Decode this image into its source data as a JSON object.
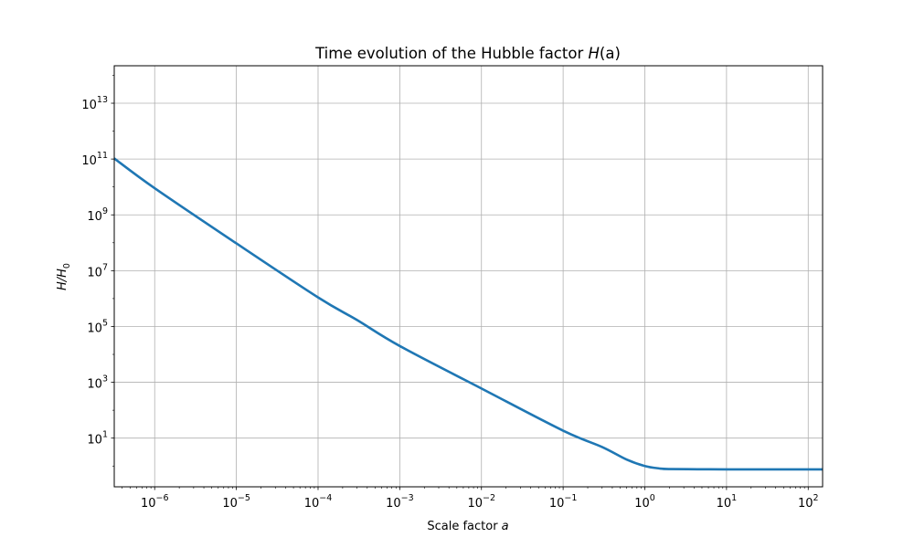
{
  "chart_data": {
    "type": "line",
    "title_text": "Time evolution of the Hubble factor ",
    "title_math": "H",
    "title_math_arg": "(a)",
    "xlabel_text": "Scale factor ",
    "xlabel_math": "a",
    "ylabel_main": "H/H",
    "ylabel_sub": "0",
    "xscale": "log",
    "yscale": "log",
    "grid": true,
    "xlim": [
      3.2e-07,
      150
    ],
    "ylim": [
      0.18,
      220000000000000.0
    ],
    "x_ticks": [
      {
        "base": "10",
        "exp": "−6"
      },
      {
        "base": "10",
        "exp": "−5"
      },
      {
        "base": "10",
        "exp": "−4"
      },
      {
        "base": "10",
        "exp": "−3"
      },
      {
        "base": "10",
        "exp": "−2"
      },
      {
        "base": "10",
        "exp": "−1"
      },
      {
        "base": "10",
        "exp": "0"
      },
      {
        "base": "10",
        "exp": "1"
      },
      {
        "base": "10",
        "exp": "2"
      }
    ],
    "y_ticks": [
      {
        "base": "10",
        "exp": "1"
      },
      {
        "base": "10",
        "exp": "3"
      },
      {
        "base": "10",
        "exp": "5"
      },
      {
        "base": "10",
        "exp": "7"
      },
      {
        "base": "10",
        "exp": "9"
      },
      {
        "base": "10",
        "exp": "11"
      },
      {
        "base": "10",
        "exp": "13"
      }
    ],
    "series": [
      {
        "color": "#1f77b4",
        "x": [
          3.2e-07,
          1e-06,
          1e-05,
          0.0001,
          0.0003,
          0.001,
          0.01,
          0.1,
          0.3,
          0.6,
          1,
          1.5,
          2,
          5,
          10,
          100,
          150
        ],
        "y": [
          105000000000.0,
          9000000000.0,
          95000000.0,
          1100000.0,
          170000.0,
          20000.0,
          600.0,
          18.5,
          4.8,
          1.7,
          1.0,
          0.82,
          0.78,
          0.765,
          0.76,
          0.76,
          0.76
        ]
      }
    ]
  }
}
